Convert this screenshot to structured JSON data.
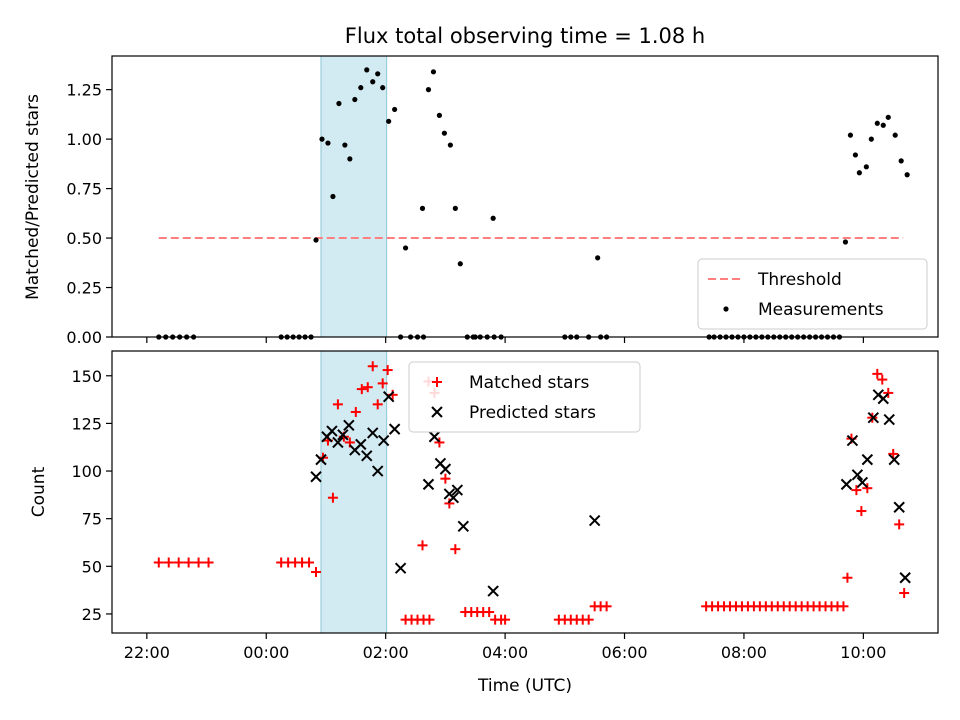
{
  "figure_title": "Flux total observing time = 1.08 h",
  "chart_data": [
    {
      "type": "scatter",
      "title": "Flux total observing time = 1.08 h",
      "xlabel": "",
      "ylabel": "Matched/Predicted stars",
      "xlim": [
        "21:25",
        "11:15"
      ],
      "ylim": [
        0,
        1.42
      ],
      "yticks": [
        "0.00",
        "0.25",
        "0.50",
        "0.75",
        "1.00",
        "1.25"
      ],
      "xticks": [
        "22:00",
        "00:00",
        "02:00",
        "04:00",
        "06:00",
        "08:00",
        "10:00"
      ],
      "grid": false,
      "legend_position": "lower-right",
      "highlight_band": {
        "start": "00:55",
        "end": "02:01",
        "color": "#add8e6"
      },
      "threshold": {
        "name": "Threshold",
        "value": 0.5,
        "start": "22:12",
        "end": "10:40",
        "color": "#ff7f7f",
        "style": "dashed"
      },
      "series": [
        {
          "name": "Measurements",
          "marker": "dot",
          "color": "#000000",
          "points": [
            [
              "22:12",
              0
            ],
            [
              "22:19",
              0
            ],
            [
              "22:26",
              0
            ],
            [
              "22:33",
              0
            ],
            [
              "22:40",
              0
            ],
            [
              "22:47",
              0
            ],
            [
              "00:15",
              0
            ],
            [
              "00:21",
              0
            ],
            [
              "00:27",
              0
            ],
            [
              "00:33",
              0
            ],
            [
              "00:39",
              0
            ],
            [
              "00:45",
              0
            ],
            [
              "00:50",
              0.49
            ],
            [
              "00:56",
              1.0
            ],
            [
              "01:02",
              0.98
            ],
            [
              "01:07",
              0.71
            ],
            [
              "01:13",
              1.18
            ],
            [
              "01:19",
              0.97
            ],
            [
              "01:24",
              0.9
            ],
            [
              "01:29",
              1.2
            ],
            [
              "01:35",
              1.26
            ],
            [
              "01:41",
              1.35
            ],
            [
              "01:47",
              1.29
            ],
            [
              "01:52",
              1.33
            ],
            [
              "01:57",
              1.26
            ],
            [
              "02:03",
              1.09
            ],
            [
              "02:09",
              1.15
            ],
            [
              "02:20",
              0.45
            ],
            [
              "02:15",
              0
            ],
            [
              "02:25",
              0
            ],
            [
              "02:32",
              0
            ],
            [
              "02:38",
              0
            ],
            [
              "02:37",
              0.65
            ],
            [
              "02:43",
              1.25
            ],
            [
              "02:48",
              1.34
            ],
            [
              "02:54",
              1.12
            ],
            [
              "02:59",
              1.03
            ],
            [
              "03:05",
              0.97
            ],
            [
              "03:10",
              0.65
            ],
            [
              "03:15",
              0.37
            ],
            [
              "03:28",
              0
            ],
            [
              "03:35",
              0
            ],
            [
              "03:42",
              0
            ],
            [
              "03:49",
              0
            ],
            [
              "03:56",
              0
            ],
            [
              "03:22",
              0
            ],
            [
              "03:30",
              0
            ],
            [
              "03:48",
              0.6
            ],
            [
              "05:00",
              0
            ],
            [
              "05:06",
              0
            ],
            [
              "05:12",
              0
            ],
            [
              "05:24",
              0
            ],
            [
              "05:36",
              0
            ],
            [
              "05:42",
              0
            ],
            [
              "05:33",
              0.4
            ],
            [
              "07:25",
              0
            ],
            [
              "07:30",
              0
            ],
            [
              "07:36",
              0
            ],
            [
              "07:42",
              0
            ],
            [
              "07:48",
              0
            ],
            [
              "07:54",
              0
            ],
            [
              "08:00",
              0
            ],
            [
              "08:06",
              0
            ],
            [
              "08:12",
              0
            ],
            [
              "08:18",
              0
            ],
            [
              "08:24",
              0
            ],
            [
              "08:30",
              0
            ],
            [
              "08:36",
              0
            ],
            [
              "08:42",
              0
            ],
            [
              "08:48",
              0
            ],
            [
              "08:54",
              0
            ],
            [
              "09:00",
              0
            ],
            [
              "09:06",
              0
            ],
            [
              "09:12",
              0
            ],
            [
              "09:18",
              0
            ],
            [
              "09:24",
              0
            ],
            [
              "09:30",
              0
            ],
            [
              "09:36",
              0
            ],
            [
              "09:42",
              0.48
            ],
            [
              "09:47",
              1.02
            ],
            [
              "09:52",
              0.92
            ],
            [
              "09:56",
              0.83
            ],
            [
              "10:03",
              0.86
            ],
            [
              "10:08",
              1.0
            ],
            [
              "10:14",
              1.08
            ],
            [
              "10:20",
              1.07
            ],
            [
              "10:25",
              1.11
            ],
            [
              "10:32",
              1.02
            ],
            [
              "10:38",
              0.89
            ],
            [
              "10:44",
              0.82
            ]
          ]
        }
      ]
    },
    {
      "type": "scatter",
      "title": "",
      "xlabel": "Time (UTC)",
      "ylabel": "Count",
      "xlim": [
        "21:25",
        "11:15"
      ],
      "ylim": [
        15,
        163
      ],
      "yticks": [
        "25",
        "50",
        "75",
        "100",
        "125",
        "150"
      ],
      "xticks": [
        "22:00",
        "00:00",
        "02:00",
        "04:00",
        "06:00",
        "08:00",
        "10:00"
      ],
      "grid": false,
      "legend_position": "upper-center",
      "highlight_band": {
        "start": "00:55",
        "end": "02:01",
        "color": "#add8e6"
      },
      "series": [
        {
          "name": "Matched stars",
          "marker": "plus",
          "color": "#ff0000",
          "points": [
            [
              "22:12",
              52
            ],
            [
              "22:22",
              52
            ],
            [
              "22:32",
              52
            ],
            [
              "22:42",
              52
            ],
            [
              "22:52",
              52
            ],
            [
              "23:02",
              52
            ],
            [
              "00:15",
              52
            ],
            [
              "00:22",
              52
            ],
            [
              "00:29",
              52
            ],
            [
              "00:36",
              52
            ],
            [
              "00:43",
              52
            ],
            [
              "00:50",
              47
            ],
            [
              "00:57",
              107
            ],
            [
              "01:02",
              116
            ],
            [
              "01:07",
              86
            ],
            [
              "01:12",
              135
            ],
            [
              "01:18",
              118
            ],
            [
              "01:24",
              115
            ],
            [
              "01:30",
              131
            ],
            [
              "01:36",
              143
            ],
            [
              "01:42",
              144
            ],
            [
              "01:47",
              155
            ],
            [
              "01:52",
              135
            ],
            [
              "01:57",
              146
            ],
            [
              "02:02",
              153
            ],
            [
              "02:07",
              140
            ],
            [
              "02:20",
              22
            ],
            [
              "02:26",
              22
            ],
            [
              "02:32",
              22
            ],
            [
              "02:38",
              22
            ],
            [
              "02:44",
              22
            ],
            [
              "02:37",
              61
            ],
            [
              "02:43",
              147
            ],
            [
              "02:49",
              141
            ],
            [
              "02:54",
              115
            ],
            [
              "03:00",
              96
            ],
            [
              "03:04",
              83
            ],
            [
              "03:10",
              59
            ],
            [
              "03:20",
              26
            ],
            [
              "03:26",
              26
            ],
            [
              "03:32",
              26
            ],
            [
              "03:38",
              26
            ],
            [
              "03:44",
              26
            ],
            [
              "03:50",
              22
            ],
            [
              "03:56",
              22
            ],
            [
              "04:00",
              22
            ],
            [
              "04:54",
              22
            ],
            [
              "05:00",
              22
            ],
            [
              "05:06",
              22
            ],
            [
              "05:12",
              22
            ],
            [
              "05:18",
              22
            ],
            [
              "05:24",
              22
            ],
            [
              "05:30",
              29
            ],
            [
              "05:36",
              29
            ],
            [
              "05:42",
              29
            ],
            [
              "07:22",
              29
            ],
            [
              "07:28",
              29
            ],
            [
              "07:34",
              29
            ],
            [
              "07:40",
              29
            ],
            [
              "07:46",
              29
            ],
            [
              "07:52",
              29
            ],
            [
              "07:58",
              29
            ],
            [
              "08:04",
              29
            ],
            [
              "08:10",
              29
            ],
            [
              "08:16",
              29
            ],
            [
              "08:22",
              29
            ],
            [
              "08:28",
              29
            ],
            [
              "08:34",
              29
            ],
            [
              "08:40",
              29
            ],
            [
              "08:46",
              29
            ],
            [
              "08:52",
              29
            ],
            [
              "08:58",
              29
            ],
            [
              "09:04",
              29
            ],
            [
              "09:10",
              29
            ],
            [
              "09:16",
              29
            ],
            [
              "09:22",
              29
            ],
            [
              "09:28",
              29
            ],
            [
              "09:34",
              29
            ],
            [
              "09:40",
              29
            ],
            [
              "09:44",
              44
            ],
            [
              "09:48",
              117
            ],
            [
              "09:53",
              90
            ],
            [
              "09:58",
              79
            ],
            [
              "10:04",
              91
            ],
            [
              "10:09",
              128
            ],
            [
              "10:14",
              151
            ],
            [
              "10:19",
              148
            ],
            [
              "10:25",
              141
            ],
            [
              "10:30",
              109
            ],
            [
              "10:36",
              72
            ],
            [
              "10:41",
              36
            ]
          ]
        },
        {
          "name": "Predicted stars",
          "marker": "x",
          "color": "#000000",
          "points": [
            [
              "00:50",
              97
            ],
            [
              "00:55",
              106
            ],
            [
              "01:01",
              118
            ],
            [
              "01:06",
              121
            ],
            [
              "01:12",
              115
            ],
            [
              "01:17",
              119
            ],
            [
              "01:23",
              124
            ],
            [
              "01:29",
              111
            ],
            [
              "01:35",
              114
            ],
            [
              "01:41",
              108
            ],
            [
              "01:47",
              120
            ],
            [
              "01:52",
              100
            ],
            [
              "01:58",
              116
            ],
            [
              "02:03",
              139
            ],
            [
              "02:09",
              122
            ],
            [
              "02:15",
              49
            ],
            [
              "02:43",
              93
            ],
            [
              "02:49",
              118
            ],
            [
              "02:55",
              104
            ],
            [
              "03:00",
              101
            ],
            [
              "03:04",
              88
            ],
            [
              "03:08",
              86
            ],
            [
              "03:12",
              90
            ],
            [
              "03:18",
              71
            ],
            [
              "03:48",
              37
            ],
            [
              "05:30",
              74
            ],
            [
              "09:43",
              93
            ],
            [
              "09:49",
              116
            ],
            [
              "09:54",
              98
            ],
            [
              "09:59",
              94
            ],
            [
              "10:04",
              106
            ],
            [
              "10:10",
              128
            ],
            [
              "10:15",
              140
            ],
            [
              "10:20",
              138
            ],
            [
              "10:26",
              127
            ],
            [
              "10:31",
              106
            ],
            [
              "10:36",
              81
            ],
            [
              "10:42",
              44
            ]
          ]
        }
      ]
    }
  ]
}
